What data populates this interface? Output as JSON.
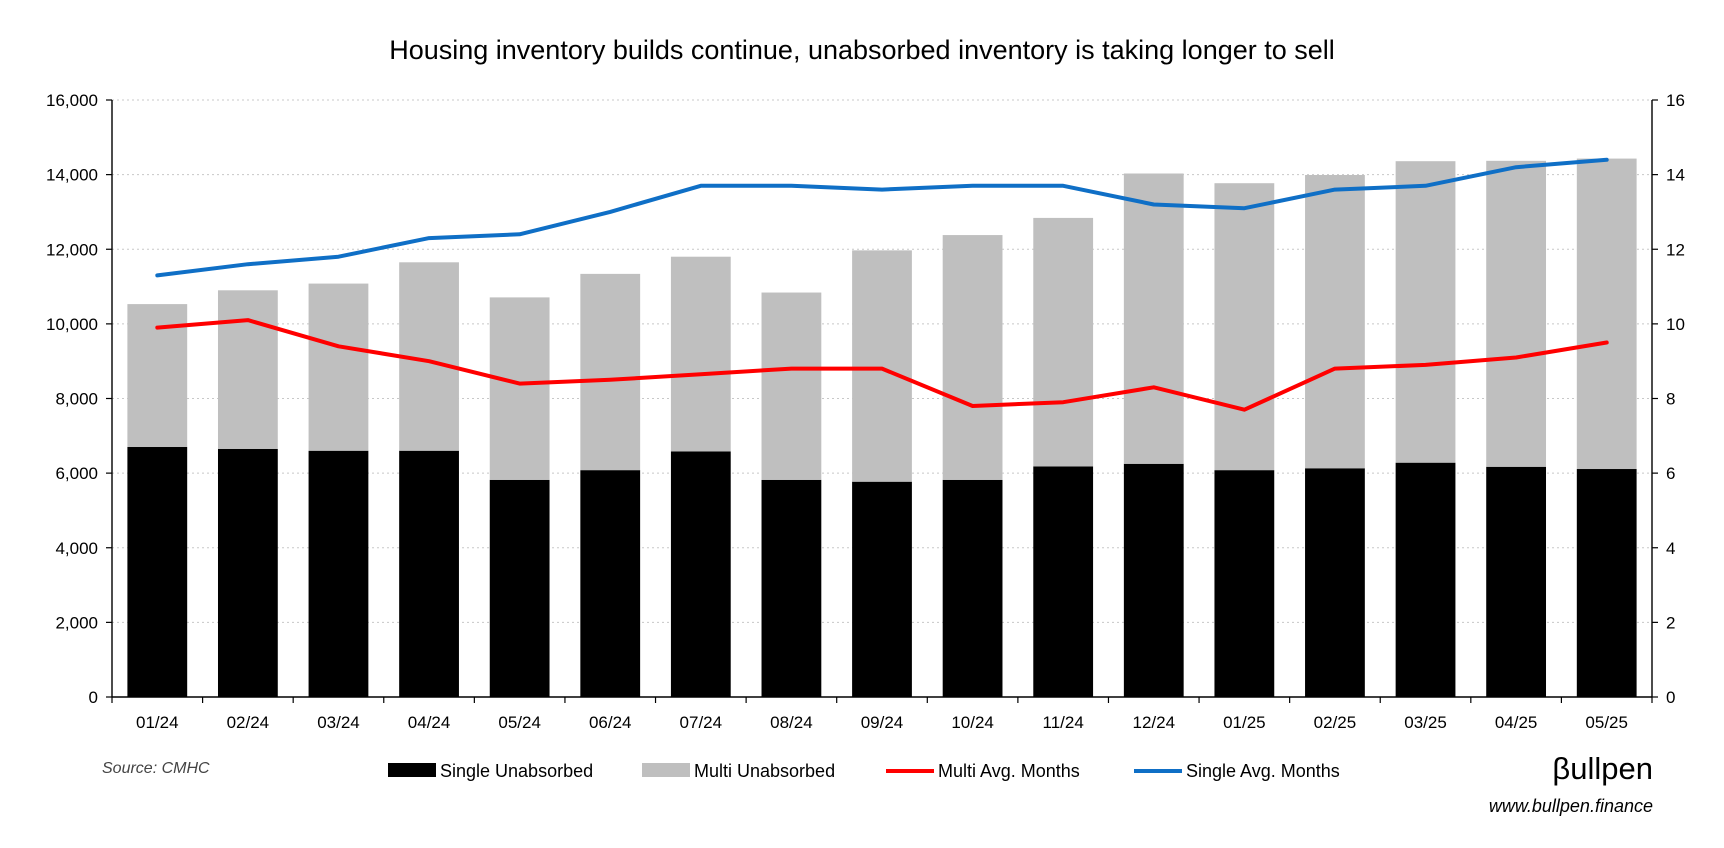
{
  "chart_data": {
    "type": "bar",
    "stacked": true,
    "title": "Housing inventory builds continue, unabsorbed inventory is taking longer to sell",
    "categories": [
      "01/24",
      "02/24",
      "03/24",
      "04/24",
      "05/24",
      "06/24",
      "07/24",
      "08/24",
      "09/24",
      "10/24",
      "11/24",
      "12/24",
      "01/25",
      "02/25",
      "03/25",
      "04/25",
      "05/25"
    ],
    "left_axis": {
      "ylim": [
        0,
        16000
      ],
      "ticks": [
        "0",
        "2,000",
        "4,000",
        "6,000",
        "8,000",
        "10,000",
        "12,000",
        "14,000",
        "16,000"
      ],
      "tick_values": [
        0,
        2000,
        4000,
        6000,
        8000,
        10000,
        12000,
        14000,
        16000
      ]
    },
    "right_axis": {
      "ylim": [
        0,
        16
      ],
      "ticks": [
        "0",
        "2",
        "4",
        "6",
        "8",
        "10",
        "12",
        "14",
        "16"
      ],
      "tick_values": [
        0,
        2,
        4,
        6,
        8,
        10,
        12,
        14,
        16
      ]
    },
    "grid": "horizontal-dotted",
    "legend_position": "bottom",
    "series": [
      {
        "name": "Single Unabsorbed",
        "kind": "bar",
        "axis": "left",
        "color": "#000000",
        "values": [
          6700,
          6650,
          6600,
          6600,
          5820,
          6080,
          6580,
          5820,
          5770,
          5820,
          6180,
          6250,
          6080,
          6130,
          6280,
          6170,
          6110
        ]
      },
      {
        "name": "Multi Unabsorbed",
        "kind": "bar",
        "axis": "left",
        "color": "#bfbfbf",
        "values": [
          3830,
          4250,
          4480,
          5050,
          4890,
          5260,
          5220,
          5020,
          6200,
          6560,
          6660,
          7780,
          7690,
          7860,
          8080,
          8200,
          8320
        ]
      },
      {
        "name": "Multi Avg. Months",
        "kind": "line",
        "axis": "right",
        "color": "#ff0000",
        "values": [
          9.9,
          10.1,
          9.4,
          9.0,
          8.4,
          8.5,
          8.65,
          8.8,
          8.8,
          7.8,
          7.9,
          8.3,
          7.7,
          8.8,
          8.9,
          9.1,
          9.5
        ]
      },
      {
        "name": "Single Avg. Months",
        "kind": "line",
        "axis": "right",
        "color": "#0f6fc6",
        "values": [
          11.3,
          11.6,
          11.8,
          12.3,
          12.4,
          13.0,
          13.7,
          13.7,
          13.6,
          13.7,
          13.7,
          13.2,
          13.1,
          13.6,
          13.7,
          14.2,
          14.4
        ]
      }
    ]
  },
  "footer": {
    "source": "Source: CMHC",
    "brand": "βullpen",
    "website": "www.bullpen.finance"
  }
}
